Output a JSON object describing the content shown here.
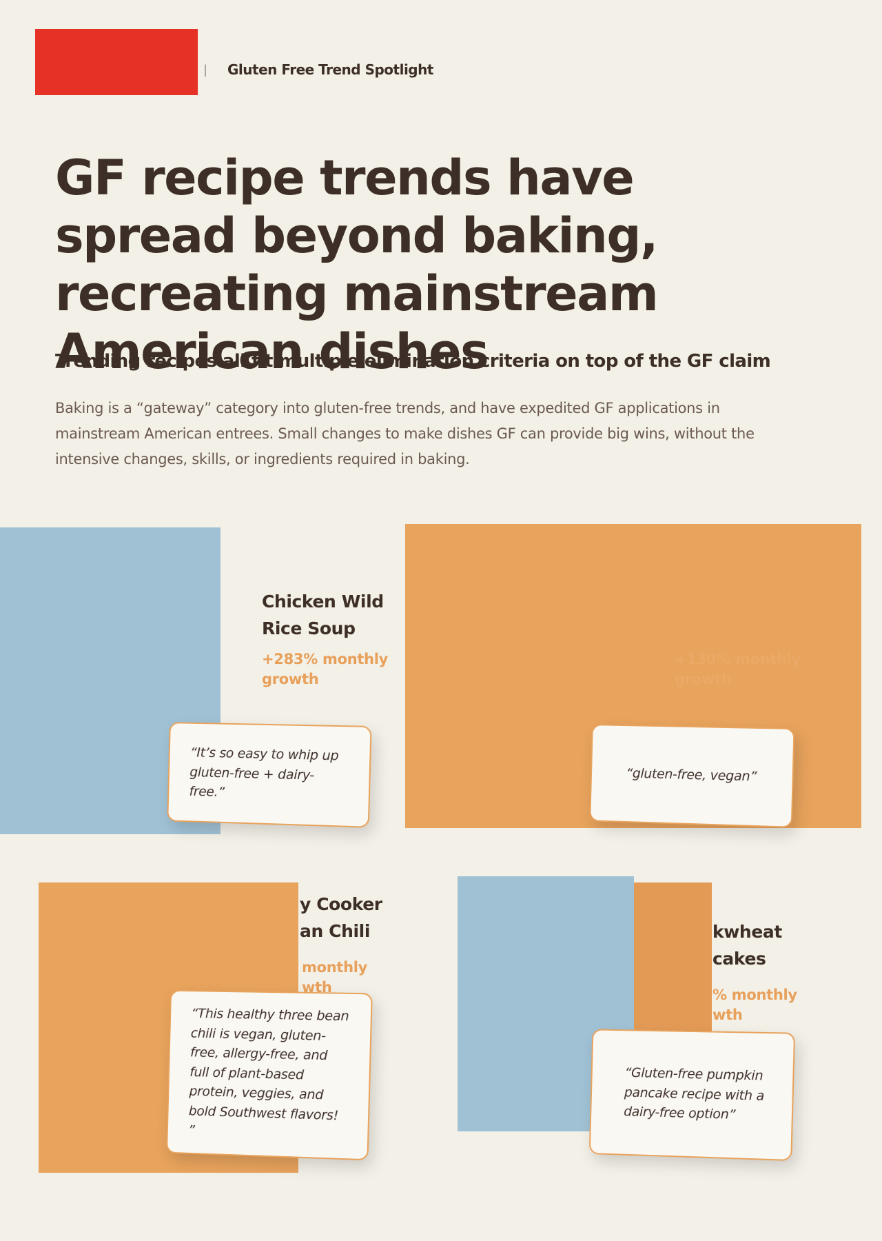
{
  "header": {
    "label": "Gluten Free Trend Spotlight"
  },
  "title": "GF recipe trends have spread beyond baking, recreating mainstream American dishes",
  "subtitle": "Trending recipes all fit multiple elimination criteria on top of the GF claim",
  "body": "Baking is a “gateway” category into gluten-free trends, and have expedited GF applications in mainstream American entrees. Small changes to make dishes GF can provide big wins, without the intensive changes, skills, or ingredients required in baking.",
  "cards": [
    {
      "name": [
        "Chicken Wild",
        "Rice Soup"
      ],
      "growth": [
        "+283% monthly",
        "growth"
      ],
      "quote": "“It’s so easy to whip up gluten-free + dairy-free.”"
    },
    {
      "growth": [
        "+130% monthly",
        "growth"
      ],
      "quote": "“gluten-free, vegan”"
    },
    {
      "name": [
        "y Cooker",
        "an Chili"
      ],
      "growth": [
        "monthly",
        "wth"
      ],
      "quote": "“This healthy three bean chili is vegan, gluten-free, allergy-free, and full of plant-based protein, veggies, and bold Southwest flavors! ”"
    },
    {
      "name": [
        "kwheat",
        "cakes"
      ],
      "growth": [
        "% monthly",
        "wth"
      ],
      "quote": "“Gluten-free pumpkin pancake recipe with a dairy-free option”"
    }
  ]
}
